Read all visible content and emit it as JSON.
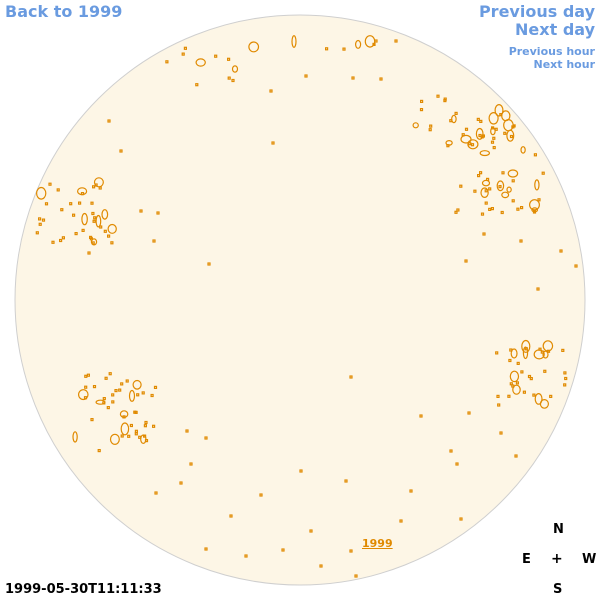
{
  "nav": {
    "back_label": "Back to 1999",
    "prev_day_label": "Previous day",
    "next_day_label": "Next day",
    "prev_hour_label": "Previous hour",
    "next_hour_label": "Next hour"
  },
  "observation": {
    "timestamp": "1999-05-30T11:11:33",
    "year_label": "1999"
  },
  "compass": {
    "north": "N",
    "south": "S",
    "east": "E",
    "west": "W",
    "center": "+"
  },
  "colors": {
    "nav_link": "#6a9be0",
    "disk_fill": "#fdf6e6",
    "disk_outline": "#cfcfcf",
    "feature_contour": "#e08a00"
  },
  "icons": {
    "disk": "solar-disk-icon",
    "feature": "sunspot-contour-icon"
  }
}
